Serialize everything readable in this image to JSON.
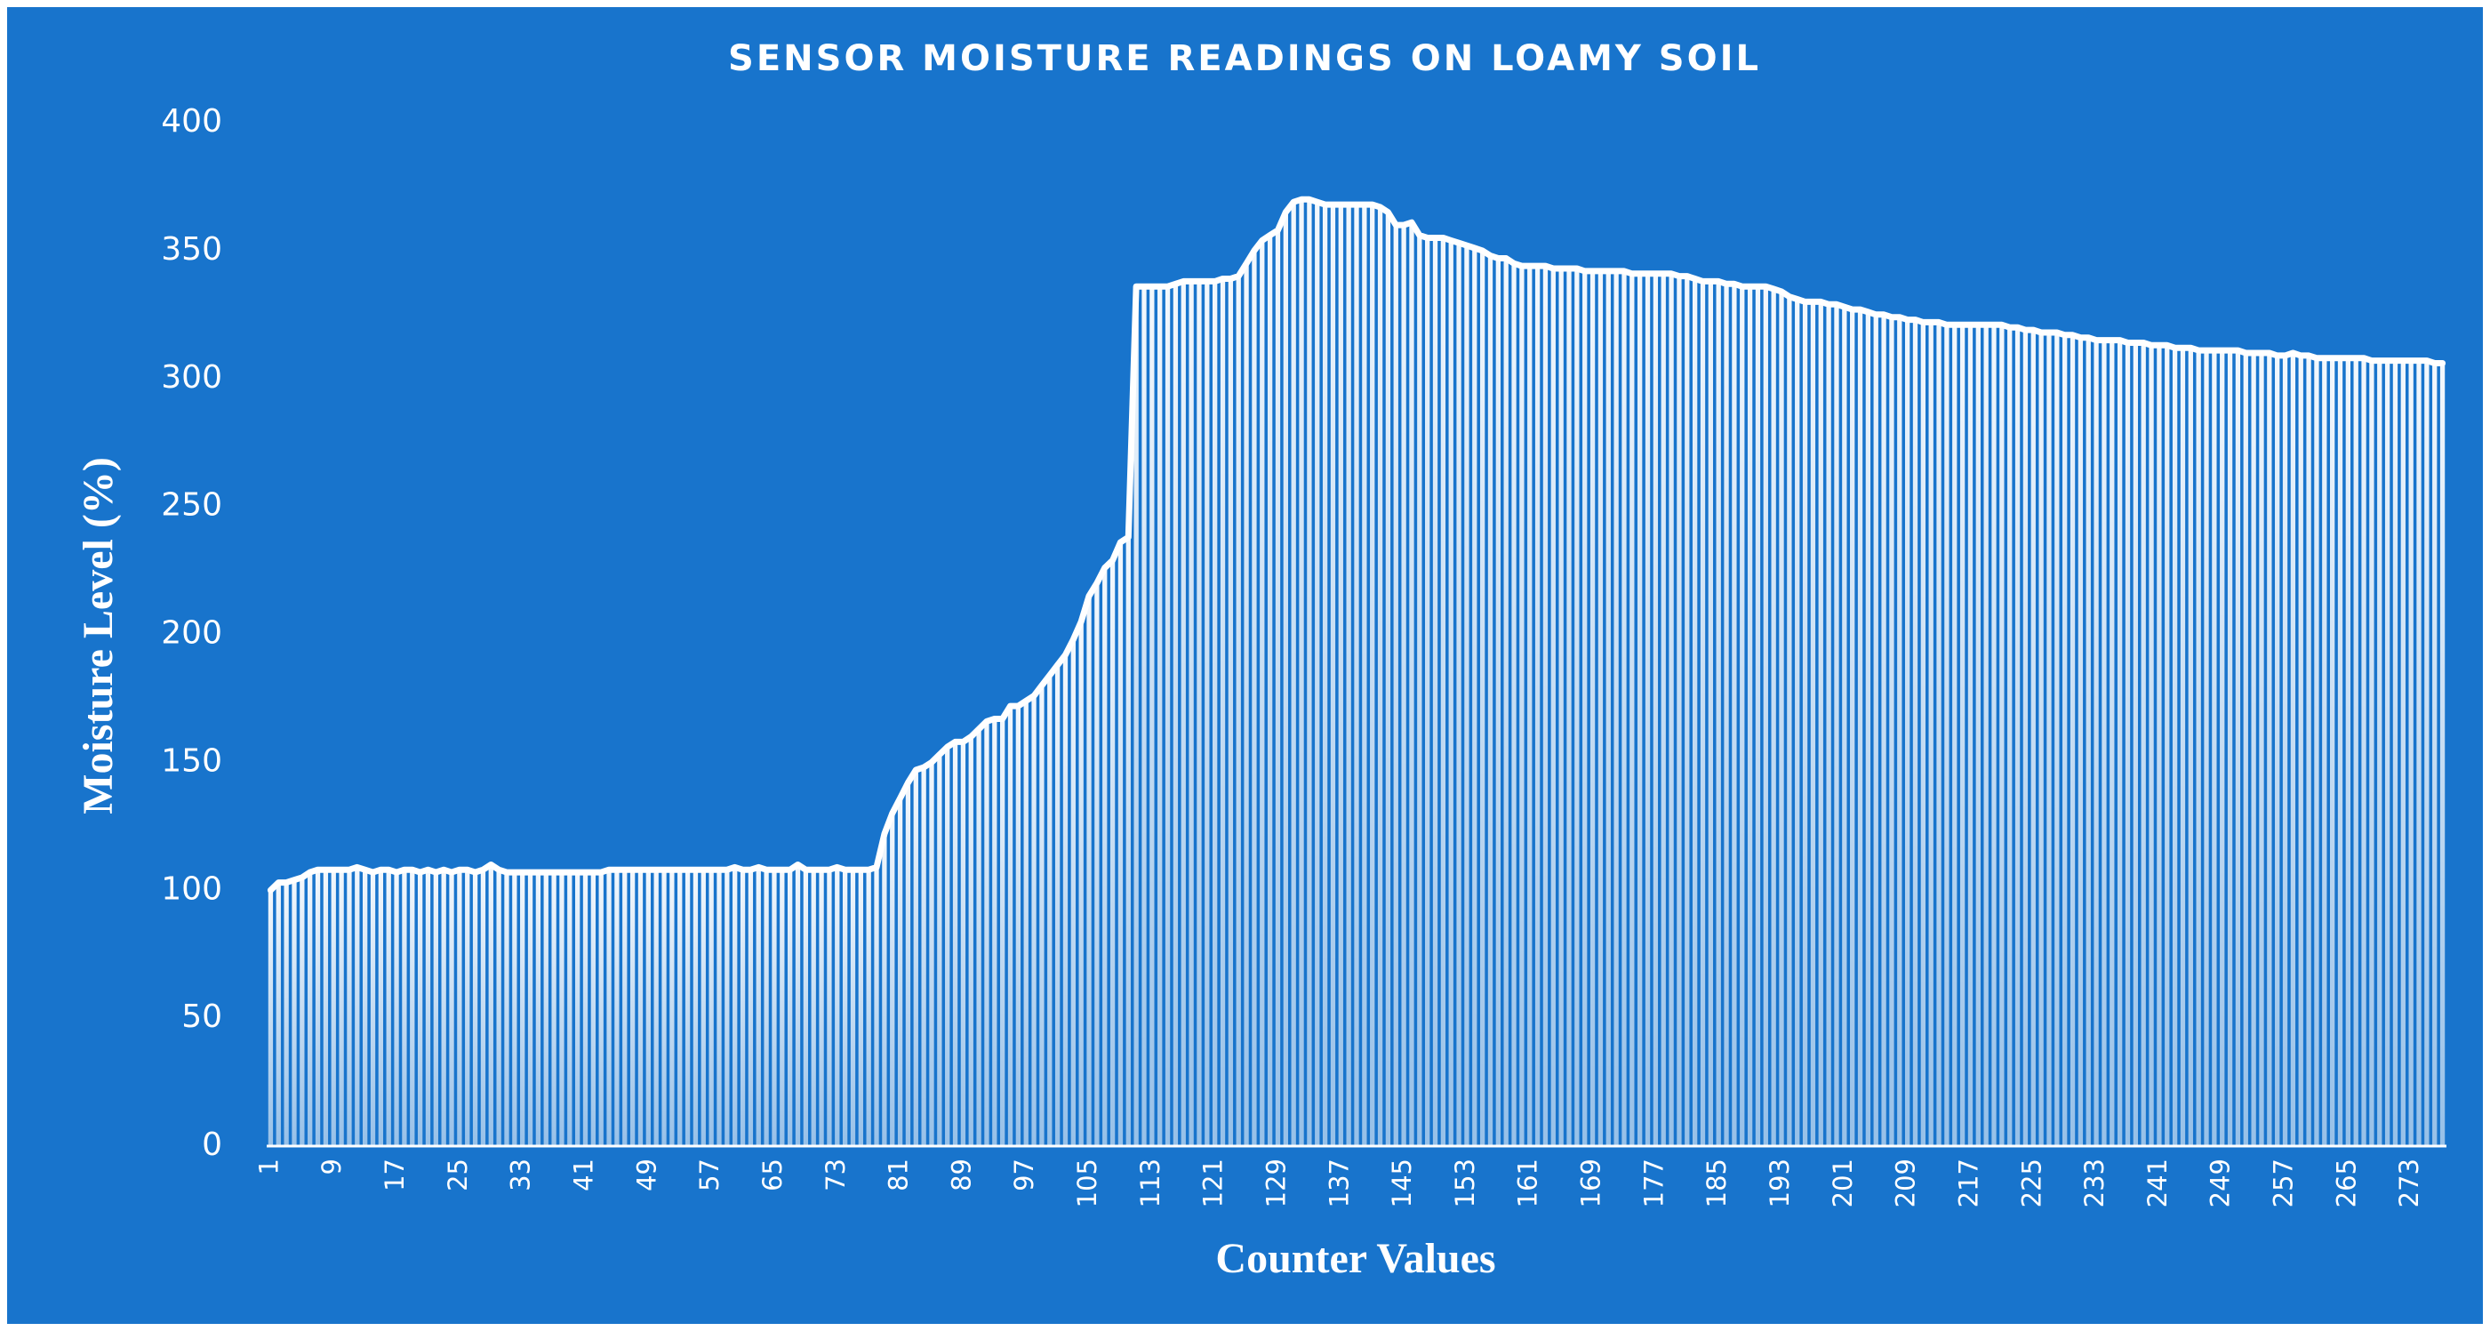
{
  "chart_data": {
    "type": "bar",
    "title": "SENSOR MOISTURE READINGS ON LOAMY SOIL",
    "x_label": "Counter Values",
    "y_label": "Moisture Level (%)",
    "color": "#ffffff",
    "background": "#1874cc",
    "ylim": [
      0,
      400
    ],
    "yticks": [
      0,
      50,
      100,
      150,
      200,
      250,
      300,
      350,
      400
    ],
    "grid": false,
    "categories": [
      "1",
      null,
      null,
      null,
      null,
      null,
      null,
      null,
      "9",
      null,
      null,
      null,
      null,
      null,
      null,
      null,
      "17",
      null,
      null,
      null,
      null,
      null,
      null,
      null,
      "25",
      null,
      null,
      null,
      null,
      null,
      null,
      null,
      "33",
      null,
      null,
      null,
      null,
      null,
      null,
      null,
      "41",
      null,
      null,
      null,
      null,
      null,
      null,
      null,
      "49",
      null,
      null,
      null,
      null,
      null,
      null,
      null,
      "57",
      null,
      null,
      null,
      null,
      null,
      null,
      null,
      "65",
      null,
      null,
      null,
      null,
      null,
      null,
      null,
      "73",
      null,
      null,
      null,
      null,
      null,
      null,
      null,
      "81",
      null,
      null,
      null,
      null,
      null,
      null,
      null,
      "89",
      null,
      null,
      null,
      null,
      null,
      null,
      null,
      "97",
      null,
      null,
      null,
      null,
      null,
      null,
      null,
      "105",
      null,
      null,
      null,
      null,
      null,
      null,
      null,
      "113",
      null,
      null,
      null,
      null,
      null,
      null,
      null,
      "121",
      null,
      null,
      null,
      null,
      null,
      null,
      null,
      "129",
      null,
      null,
      null,
      null,
      null,
      null,
      null,
      "137",
      null,
      null,
      null,
      null,
      null,
      null,
      null,
      "145",
      null,
      null,
      null,
      null,
      null,
      null,
      null,
      "153",
      null,
      null,
      null,
      null,
      null,
      null,
      null,
      "161",
      null,
      null,
      null,
      null,
      null,
      null,
      null,
      "169",
      null,
      null,
      null,
      null,
      null,
      null,
      null,
      "177",
      null,
      null,
      null,
      null,
      null,
      null,
      null,
      "185",
      null,
      null,
      null,
      null,
      null,
      null,
      null,
      "193",
      null,
      null,
      null,
      null,
      null,
      null,
      null,
      "201",
      null,
      null,
      null,
      null,
      null,
      null,
      null,
      "209",
      null,
      null,
      null,
      null,
      null,
      null,
      null,
      "217",
      null,
      null,
      null,
      null,
      null,
      null,
      null,
      "225",
      null,
      null,
      null,
      null,
      null,
      null,
      null,
      "233",
      null,
      null,
      null,
      null,
      null,
      null,
      null,
      "241",
      null,
      null,
      null,
      null,
      null,
      null,
      null,
      "249",
      null,
      null,
      null,
      null,
      null,
      null,
      null,
      "257",
      null,
      null,
      null,
      null,
      null,
      null,
      null,
      "265",
      null,
      null,
      null,
      null,
      null,
      null,
      null,
      "273",
      null,
      null,
      null,
      null
    ],
    "values": [
      100,
      103,
      103,
      104,
      105,
      107,
      108,
      108,
      108,
      108,
      108,
      109,
      108,
      107,
      108,
      108,
      107,
      108,
      108,
      107,
      108,
      107,
      108,
      107,
      108,
      108,
      107,
      108,
      110,
      108,
      107,
      107,
      107,
      107,
      107,
      107,
      107,
      107,
      107,
      107,
      107,
      107,
      107,
      108,
      108,
      108,
      108,
      108,
      108,
      108,
      108,
      108,
      108,
      108,
      108,
      108,
      108,
      108,
      108,
      109,
      108,
      108,
      109,
      108,
      108,
      108,
      108,
      110,
      108,
      108,
      108,
      108,
      109,
      108,
      108,
      108,
      108,
      109,
      122,
      130,
      136,
      142,
      147,
      148,
      150,
      153,
      156,
      158,
      158,
      160,
      163,
      166,
      167,
      167,
      172,
      172,
      174,
      176,
      180,
      184,
      188,
      192,
      198,
      205,
      215,
      220,
      226,
      229,
      236,
      238,
      336,
      336,
      336,
      336,
      336,
      337,
      338,
      338,
      338,
      338,
      338,
      339,
      339,
      340,
      345,
      350,
      354,
      356,
      358,
      365,
      369,
      370,
      370,
      369,
      368,
      368,
      368,
      368,
      368,
      368,
      368,
      367,
      365,
      360,
      360,
      361,
      356,
      355,
      355,
      355,
      354,
      353,
      352,
      351,
      350,
      348,
      347,
      347,
      345,
      344,
      344,
      344,
      344,
      343,
      343,
      343,
      343,
      342,
      342,
      342,
      342,
      342,
      342,
      341,
      341,
      341,
      341,
      341,
      341,
      340,
      340,
      339,
      338,
      338,
      338,
      337,
      337,
      336,
      336,
      336,
      336,
      335,
      334,
      332,
      331,
      330,
      330,
      330,
      329,
      329,
      328,
      327,
      327,
      326,
      325,
      325,
      324,
      324,
      323,
      323,
      322,
      322,
      322,
      321,
      321,
      321,
      321,
      321,
      321,
      321,
      321,
      320,
      320,
      319,
      319,
      318,
      318,
      318,
      317,
      317,
      316,
      316,
      315,
      315,
      315,
      315,
      314,
      314,
      314,
      313,
      313,
      313,
      312,
      312,
      312,
      311,
      311,
      311,
      311,
      311,
      311,
      310,
      310,
      310,
      310,
      309,
      309,
      310,
      309,
      309,
      308,
      308,
      308,
      308,
      308,
      308,
      308,
      307,
      307,
      307,
      307,
      307,
      307,
      307,
      307,
      306,
      306
    ]
  }
}
